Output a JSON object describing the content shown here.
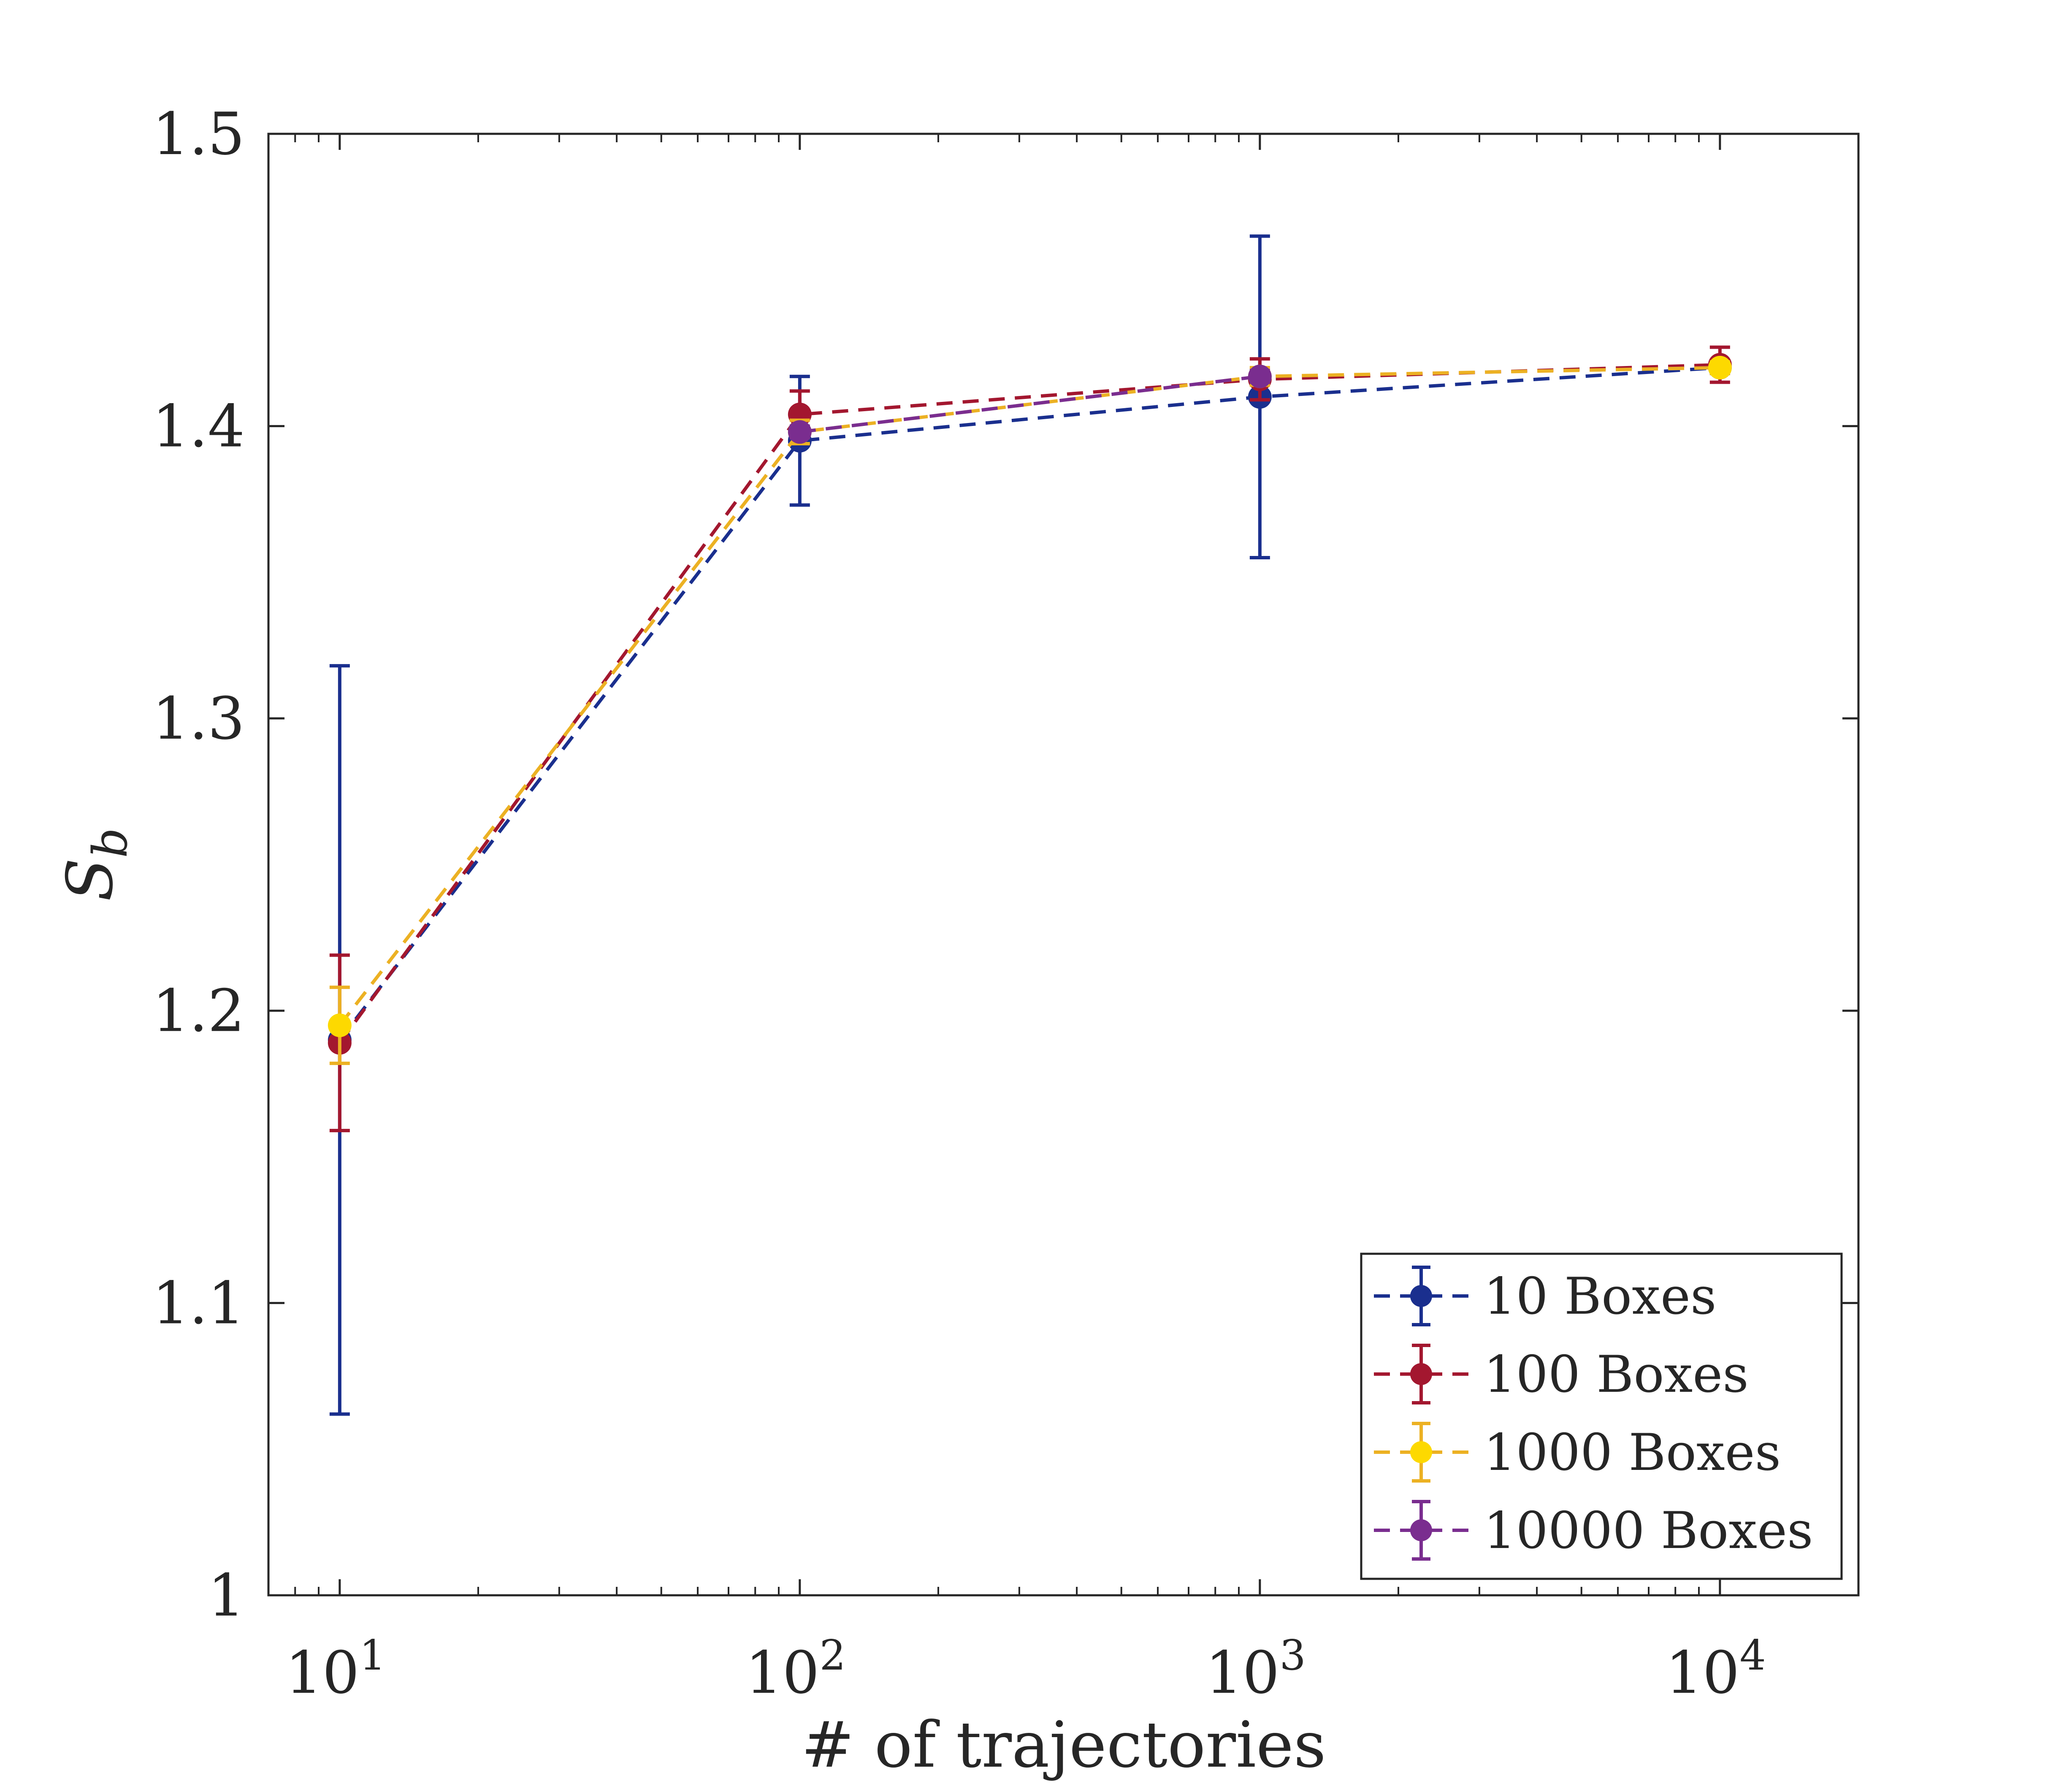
{
  "chart_data": {
    "type": "line",
    "title": "",
    "xlabel": "# of trajectories",
    "ylabel": "S",
    "ylabel_subscript": "b",
    "xscale": "log",
    "xlim": [
      7,
      20000
    ],
    "ylim": [
      1,
      1.5
    ],
    "x_ticks": [
      {
        "base": "10",
        "exp": "1",
        "value": 10
      },
      {
        "base": "10",
        "exp": "2",
        "value": 100
      },
      {
        "base": "10",
        "exp": "3",
        "value": 1000
      },
      {
        "base": "10",
        "exp": "4",
        "value": 10000
      }
    ],
    "y_ticks": [
      {
        "label": "1",
        "value": 1.0
      },
      {
        "label": "1.1",
        "value": 1.1
      },
      {
        "label": "1.2",
        "value": 1.2
      },
      {
        "label": "1.3",
        "value": 1.3
      },
      {
        "label": "1.4",
        "value": 1.4
      },
      {
        "label": "1.5",
        "value": 1.5
      }
    ],
    "grid": false,
    "legend_position": "bottom-right",
    "x": [
      10,
      100,
      1000,
      10000
    ],
    "series": [
      {
        "name": "10 Boxes",
        "color": "#1A2F8E",
        "marker_color": "#1A2F8E",
        "values": [
          1.19,
          1.395,
          1.41,
          1.42
        ],
        "errors": [
          0.128,
          0.022,
          0.055,
          0.002
        ]
      },
      {
        "name": "100 Boxes",
        "color": "#A3172F",
        "marker_color": "#A3172F",
        "values": [
          1.189,
          1.404,
          1.416,
          1.421
        ],
        "errors": [
          0.03,
          0.008,
          0.007,
          0.006
        ]
      },
      {
        "name": "1000 Boxes",
        "color": "#ECB123",
        "marker_color": "#FDD900",
        "values": [
          1.195,
          1.398,
          1.417,
          1.42
        ],
        "errors": [
          0.013,
          0.004,
          0.003,
          0.002
        ]
      },
      {
        "name": "10000 Boxes",
        "color": "#7A2D8F",
        "marker_color": "#7A2D8F",
        "values": [
          null,
          1.398,
          1.417,
          null
        ],
        "errors": [
          null,
          0.002,
          0.002,
          null
        ]
      }
    ]
  }
}
